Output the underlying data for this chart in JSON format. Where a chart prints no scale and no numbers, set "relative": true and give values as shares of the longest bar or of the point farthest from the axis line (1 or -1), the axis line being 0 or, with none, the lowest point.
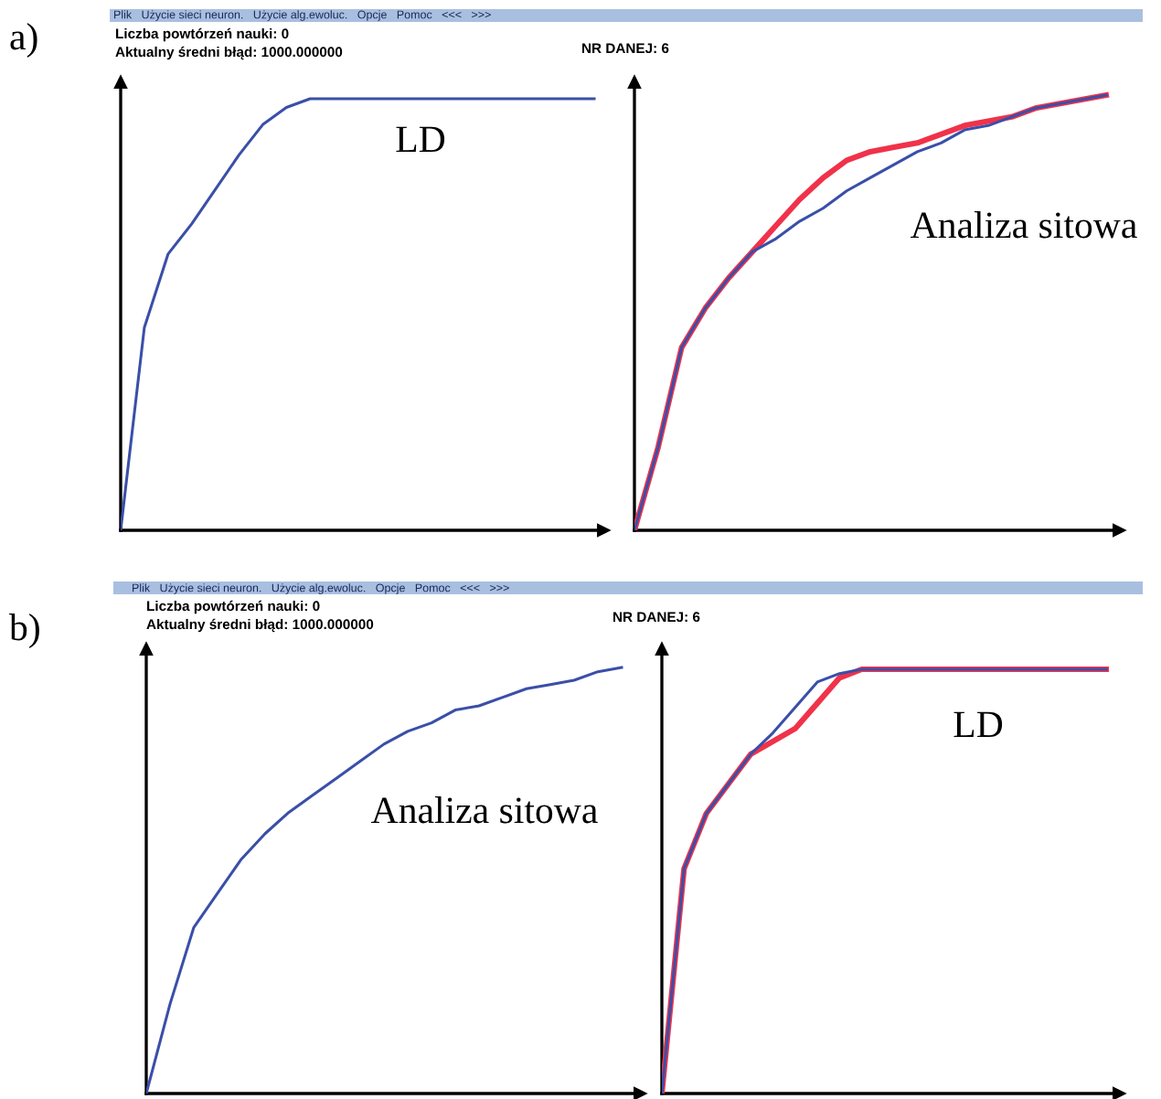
{
  "chart_data": [
    {
      "type": "line",
      "relative": true,
      "categories": [
        null,
        null,
        null,
        null,
        null,
        null,
        null,
        null,
        null,
        null,
        null,
        null,
        null,
        null,
        null,
        null,
        null,
        null,
        null,
        null,
        null
      ],
      "series": [
        {
          "color": "#3a4fa8",
          "values": [
            0,
            0.47,
            0.64,
            0.71,
            0.79,
            0.87,
            0.94,
            0.98,
            1,
            1,
            1,
            1,
            1,
            1,
            1,
            1,
            1,
            1,
            1,
            1,
            1
          ]
        }
      ],
      "annotations": [
        "a)",
        "Plik   Użycie sieci neuron.   Użycie alg.ewoluc.   Opcje   Pomoc   <<<   >>>",
        "Liczba powtórzeń nauki: 0",
        "Aktualny średni błąd: 1000.000000",
        "LD"
      ]
    },
    {
      "type": "line",
      "relative": true,
      "categories": [
        null,
        null,
        null,
        null,
        null,
        null,
        null,
        null,
        null,
        null,
        null,
        null,
        null,
        null,
        null,
        null,
        null,
        null,
        null,
        null,
        null
      ],
      "series": [
        {
          "color": "#3a4fa8",
          "values": [
            0,
            0.19,
            0.42,
            0.51,
            0.58,
            0.64,
            0.67,
            0.71,
            0.74,
            0.78,
            0.81,
            0.84,
            0.87,
            0.89,
            0.92,
            0.93,
            0.95,
            0.97,
            0.98,
            0.99,
            1
          ]
        },
        {
          "color": "#f0324a",
          "values": [
            0,
            0.19,
            0.42,
            0.51,
            0.58,
            0.64,
            0.7,
            0.76,
            0.81,
            0.85,
            0.87,
            0.88,
            0.89,
            0.91,
            0.93,
            0.94,
            0.95,
            0.97,
            0.98,
            0.99,
            1
          ]
        }
      ],
      "annotations": [
        "NR DANEJ: 6",
        "Analiza sitowa"
      ]
    },
    {
      "type": "line",
      "relative": true,
      "categories": [
        null,
        null,
        null,
        null,
        null,
        null,
        null,
        null,
        null,
        null,
        null,
        null,
        null,
        null,
        null,
        null,
        null,
        null,
        null,
        null,
        null
      ],
      "series": [
        {
          "color": "#3a4fa8",
          "values": [
            0,
            0.21,
            0.39,
            0.47,
            0.55,
            0.61,
            0.66,
            0.7,
            0.74,
            0.78,
            0.82,
            0.85,
            0.87,
            0.9,
            0.91,
            0.93,
            0.95,
            0.96,
            0.97,
            0.99,
            1
          ]
        }
      ],
      "annotations": [
        "b)",
        "Plik   Użycie sieci neuron.   Użycie alg.ewoluc.   Opcje   Pomoc   <<<   >>>",
        "Liczba powtórzeń nauki: 0",
        "Aktualny średni błąd: 1000.000000",
        "Analiza sitowa"
      ]
    },
    {
      "type": "line",
      "relative": true,
      "categories": [
        null,
        null,
        null,
        null,
        null,
        null,
        null,
        null,
        null,
        null,
        null,
        null,
        null,
        null,
        null,
        null,
        null,
        null,
        null,
        null,
        null
      ],
      "series": [
        {
          "color": "#3a4fa8",
          "values": [
            0,
            0.53,
            0.66,
            0.73,
            0.8,
            0.85,
            0.91,
            0.97,
            0.99,
            1,
            1,
            1,
            1,
            1,
            1,
            1,
            1,
            1,
            1,
            1,
            1
          ]
        },
        {
          "color": "#f0324a",
          "values": [
            0,
            0.53,
            0.66,
            0.73,
            0.8,
            0.83,
            0.86,
            0.92,
            0.98,
            1,
            1,
            1,
            1,
            1,
            1,
            1,
            1,
            1,
            1,
            1,
            1
          ]
        }
      ],
      "annotations": [
        "NR DANEJ: 6",
        "LD"
      ]
    }
  ]
}
